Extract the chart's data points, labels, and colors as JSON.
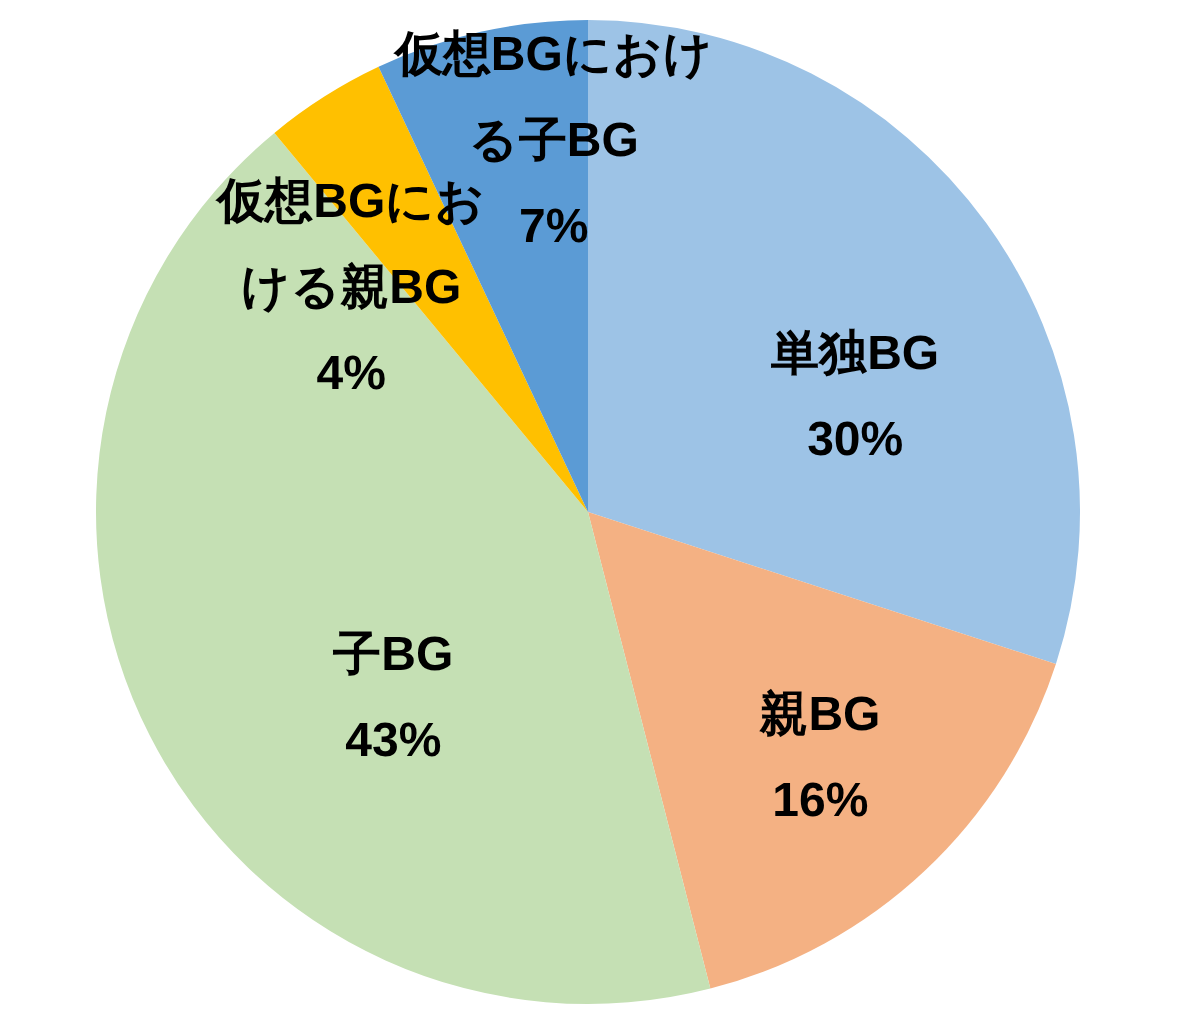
{
  "chart_data": {
    "type": "pie",
    "categories": [
      "単独BG",
      "親BG",
      "子BG",
      "仮想BGにおける親BG",
      "仮想BGにおける子BG"
    ],
    "values": [
      30,
      16,
      43,
      4,
      7
    ],
    "colors": [
      "#9dc3e6",
      "#f4b183",
      "#c5e0b4",
      "#ffc000",
      "#5b9bd5"
    ],
    "value_labels": [
      "30%",
      "16%",
      "43%",
      "4%",
      "7%"
    ]
  }
}
